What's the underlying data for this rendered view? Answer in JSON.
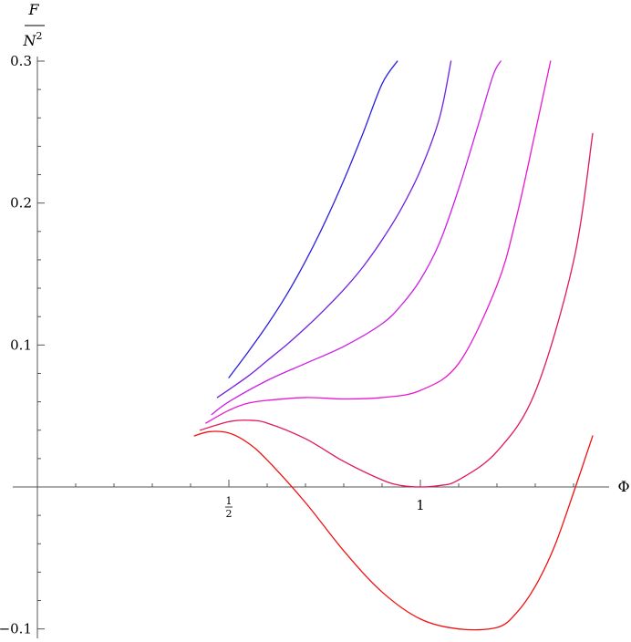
{
  "chart_data": {
    "type": "line",
    "title": "",
    "xlabel": "Φ",
    "ylabel": {
      "numerator": "F",
      "denominator": "N",
      "exponent": "2"
    },
    "xlim": [
      -0.08,
      1.5
    ],
    "ylim": [
      -0.105,
      0.3
    ],
    "x_ticks": [
      {
        "value": 0.5,
        "numerator": "1",
        "denominator": "2"
      },
      {
        "value": 1.0,
        "label": "1"
      }
    ],
    "y_ticks": [
      {
        "value": 0.3,
        "label": "0.3"
      },
      {
        "value": 0.2,
        "label": "0.2"
      },
      {
        "value": 0.1,
        "label": "0.1"
      },
      {
        "value": -0.1,
        "label": "−0.1"
      }
    ],
    "grid": false,
    "legend": "none",
    "series": [
      {
        "color": "#2a1fe0",
        "x": [
          0.5,
          0.55,
          0.6,
          0.65,
          0.7,
          0.75,
          0.8,
          0.85,
          0.9,
          0.94
        ],
        "y": [
          0.077,
          0.095,
          0.114,
          0.135,
          0.159,
          0.186,
          0.216,
          0.249,
          0.284,
          0.3
        ]
      },
      {
        "color": "#7020e0",
        "x": [
          0.47,
          0.55,
          0.6,
          0.65,
          0.7,
          0.75,
          0.8,
          0.85,
          0.9,
          0.95,
          1.0,
          1.05,
          1.08
        ],
        "y": [
          0.063,
          0.078,
          0.089,
          0.1,
          0.112,
          0.125,
          0.139,
          0.155,
          0.174,
          0.196,
          0.223,
          0.26,
          0.3
        ]
      },
      {
        "color": "#cc1fe6",
        "x": [
          0.455,
          0.5,
          0.6,
          0.7,
          0.8,
          0.9,
          0.95,
          1.0,
          1.05,
          1.1,
          1.15,
          1.19,
          1.21
        ],
        "y": [
          0.051,
          0.06,
          0.075,
          0.087,
          0.099,
          0.115,
          0.128,
          0.146,
          0.172,
          0.21,
          0.254,
          0.29,
          0.3
        ]
      },
      {
        "color": "#ea18d0",
        "x": [
          0.44,
          0.5,
          0.55,
          0.6,
          0.7,
          0.8,
          0.9,
          1.0,
          1.1,
          1.2,
          1.25,
          1.3,
          1.34
        ],
        "y": [
          0.045,
          0.054,
          0.059,
          0.061,
          0.063,
          0.062,
          0.063,
          0.068,
          0.087,
          0.142,
          0.189,
          0.25,
          0.3
        ]
      },
      {
        "color": "#e0185a",
        "x": [
          0.425,
          0.5,
          0.55,
          0.6,
          0.7,
          0.8,
          0.9,
          0.95,
          1.0,
          1.05,
          1.1,
          1.2,
          1.3,
          1.4,
          1.45
        ],
        "y": [
          0.04,
          0.046,
          0.047,
          0.045,
          0.034,
          0.018,
          0.005,
          0.001,
          0.0,
          0.001,
          0.005,
          0.025,
          0.067,
          0.159,
          0.249
        ]
      },
      {
        "color": "#f01010",
        "x": [
          0.41,
          0.45,
          0.5,
          0.55,
          0.6,
          0.7,
          0.8,
          0.9,
          1.0,
          1.1,
          1.2,
          1.25,
          1.3,
          1.35,
          1.4,
          1.45
        ],
        "y": [
          0.036,
          0.039,
          0.038,
          0.031,
          0.019,
          -0.011,
          -0.045,
          -0.074,
          -0.093,
          -0.1,
          -0.099,
          -0.089,
          -0.07,
          -0.042,
          -0.004,
          0.036
        ]
      }
    ]
  }
}
